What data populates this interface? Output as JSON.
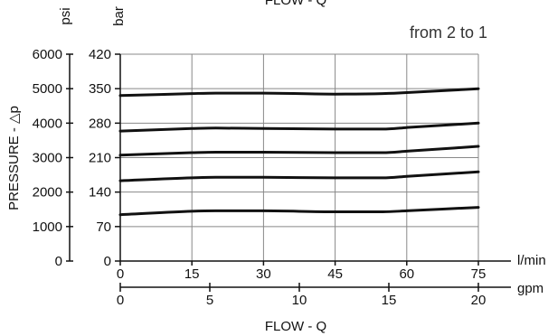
{
  "chart_data": {
    "type": "line",
    "top_title": "FLOW - Q",
    "bottom_title": "FLOW - Q",
    "annotation": "from 2 to 1",
    "y_label": "PRESSURE - △p",
    "y_unit_psi": "psi",
    "y_unit_bar": "bar",
    "x_unit_lmin": "l/min",
    "x_unit_gpm": "gpm",
    "x_lmin_ticks": [
      0,
      15,
      30,
      45,
      60,
      75
    ],
    "x_gpm_ticks": [
      0,
      5,
      10,
      15,
      20
    ],
    "y_bar_ticks": [
      0,
      70,
      140,
      210,
      280,
      350,
      420
    ],
    "y_psi_ticks": [
      0,
      1000,
      2000,
      3000,
      4000,
      5000,
      6000
    ],
    "xlim": [
      0,
      75
    ],
    "ylim": [
      0,
      420
    ],
    "grid": true,
    "x": [
      0,
      15,
      20,
      30,
      45,
      55,
      60,
      75
    ],
    "series": [
      {
        "values": [
          94,
          101,
          102,
          102,
          100,
          100,
          102,
          109
        ]
      },
      {
        "values": [
          163,
          169,
          170,
          170,
          169,
          169,
          172,
          181
        ]
      },
      {
        "values": [
          215,
          220,
          221,
          221,
          220,
          220,
          223,
          233
        ]
      },
      {
        "values": [
          264,
          269,
          270,
          269,
          268,
          268,
          271,
          280
        ]
      },
      {
        "values": [
          336,
          340,
          341,
          341,
          339,
          340,
          342,
          350
        ]
      }
    ],
    "colors": {
      "line": "#111111",
      "grid": "#888888"
    }
  }
}
